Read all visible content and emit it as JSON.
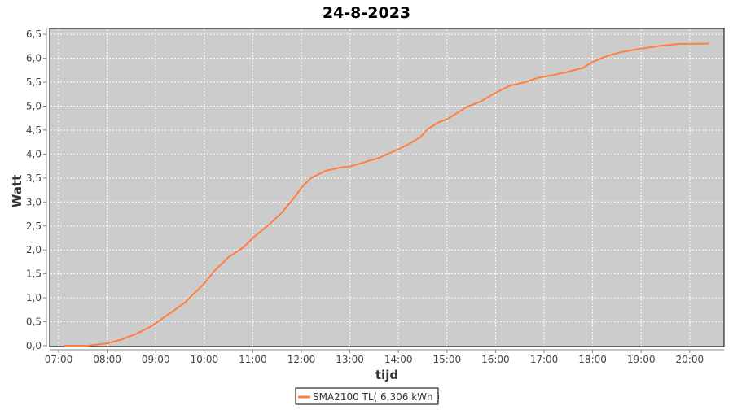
{
  "chart_data": {
    "type": "line",
    "title": "24-8-2023",
    "xlabel": "tijd",
    "ylabel": "Watt",
    "xlim": [
      "07:00",
      "20:45"
    ],
    "ylim": [
      0,
      6.6
    ],
    "x_ticks": [
      "07:00",
      "08:00",
      "09:00",
      "10:00",
      "11:00",
      "12:00",
      "13:00",
      "14:00",
      "15:00",
      "16:00",
      "17:00",
      "18:00",
      "19:00",
      "20:00"
    ],
    "y_ticks": [
      "0,0",
      "0,5",
      "1,0",
      "1,5",
      "2,0",
      "2,5",
      "3,0",
      "3,5",
      "4,0",
      "4,5",
      "5,0",
      "5,5",
      "6,0",
      "6,5"
    ],
    "grid": true,
    "legend_position": "bottom",
    "background_color": "#cccccc",
    "series": [
      {
        "name": "SMA2100 TL( 6,306 kWh )",
        "color": "#ff7f3f",
        "x": [
          "07:06",
          "07:36",
          "08:00",
          "08:18",
          "08:36",
          "08:54",
          "09:00",
          "09:18",
          "09:36",
          "10:00",
          "10:12",
          "10:30",
          "10:48",
          "11:00",
          "11:18",
          "11:36",
          "11:54",
          "12:00",
          "12:12",
          "12:30",
          "12:48",
          "13:00",
          "13:18",
          "13:36",
          "14:00",
          "14:12",
          "14:27",
          "14:36",
          "14:48",
          "15:00",
          "15:12",
          "15:24",
          "15:42",
          "16:00",
          "16:18",
          "16:36",
          "16:54",
          "17:12",
          "17:30",
          "17:48",
          "18:00",
          "18:18",
          "18:36",
          "19:00",
          "19:24",
          "19:48",
          "20:24"
        ],
        "y": [
          0,
          0,
          0.05,
          0.13,
          0.25,
          0.4,
          0.47,
          0.68,
          0.9,
          1.3,
          1.55,
          1.85,
          2.05,
          2.25,
          2.5,
          2.78,
          3.15,
          3.3,
          3.5,
          3.65,
          3.72,
          3.74,
          3.83,
          3.92,
          4.1,
          4.2,
          4.35,
          4.52,
          4.65,
          4.73,
          4.85,
          4.98,
          5.1,
          5.28,
          5.43,
          5.5,
          5.6,
          5.65,
          5.72,
          5.8,
          5.92,
          6.05,
          6.13,
          6.2,
          6.26,
          6.3,
          6.306
        ]
      }
    ]
  }
}
